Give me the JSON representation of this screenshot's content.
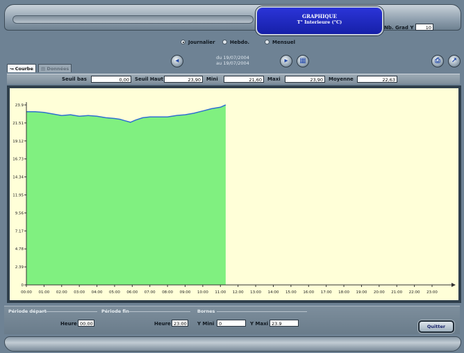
{
  "header": {
    "title_line1": "GRAPHIQUE",
    "title_line2": "T° Interieure (°C)",
    "grad_label": "Nb. Grad Y",
    "grad_value": "10"
  },
  "period_radio": {
    "options": [
      "Journalier",
      "Hebdo.",
      "Mensuel"
    ],
    "selected": "Journalier"
  },
  "date_range": {
    "line1": "du 19/07/2004",
    "line2": "au 19/07/2004"
  },
  "tabs": [
    "Courbe",
    "Données"
  ],
  "stats": {
    "seuil_bas_label": "Seuil bas",
    "seuil_bas_value": "0,00",
    "seuil_haut_label": "Seuil Haut",
    "seuil_haut_value": "23,90",
    "mini_label": "Mini",
    "mini_value": "21,60",
    "maxi_label": "Maxi",
    "maxi_value": "23,90",
    "moyenne_label": "Moyenne",
    "moyenne_value": "22,63"
  },
  "colors": {
    "fill": "#80f080",
    "line": "#3070d0",
    "plot_bg": "#ffffd8",
    "title_bg": "#2028c8"
  },
  "chart_data": {
    "type": "area",
    "x_ticks": [
      "00:00",
      "01:00",
      "02:00",
      "03:00",
      "04:00",
      "05:00",
      "06:00",
      "07:00",
      "08:00",
      "09:00",
      "10:00",
      "11:00",
      "12:00",
      "13:00",
      "14:00",
      "15:00",
      "16:00",
      "17:00",
      "18:00",
      "19:00",
      "20:00",
      "21:00",
      "22:00",
      "23:00"
    ],
    "y_ticks": [
      "0",
      "2.39",
      "4.78",
      "7.17",
      "9.56",
      "11.95",
      "14.34",
      "16.73",
      "19.12",
      "21.51",
      "23.9"
    ],
    "ylim": [
      0,
      23.9
    ],
    "x": [
      0,
      0.5,
      1,
      1.5,
      2,
      2.5,
      3,
      3.5,
      4,
      4.5,
      5,
      5.3,
      5.6,
      5.9,
      6.2,
      6.6,
      7,
      7.5,
      8,
      8.5,
      9,
      9.5,
      10,
      10.5,
      11,
      11.3
    ],
    "values": [
      23.0,
      23.0,
      22.9,
      22.7,
      22.5,
      22.6,
      22.4,
      22.5,
      22.4,
      22.2,
      22.1,
      22.0,
      21.8,
      21.6,
      21.9,
      22.2,
      22.3,
      22.3,
      22.3,
      22.5,
      22.6,
      22.8,
      23.1,
      23.4,
      23.6,
      23.9
    ],
    "grid": false
  },
  "bottom": {
    "periode_depart_title": "Période départ",
    "periode_fin_title": "Période fin",
    "bornes_title": "Bornes",
    "heure_label": "Heure",
    "heure_depart_value": "00:00",
    "heure_fin_value": "23:00",
    "ymini_label": "Y Mini",
    "ymini_value": "0",
    "ymaxi_label": "Y Maxi",
    "ymaxi_value": "23.9",
    "quit_label": "Quitter"
  }
}
